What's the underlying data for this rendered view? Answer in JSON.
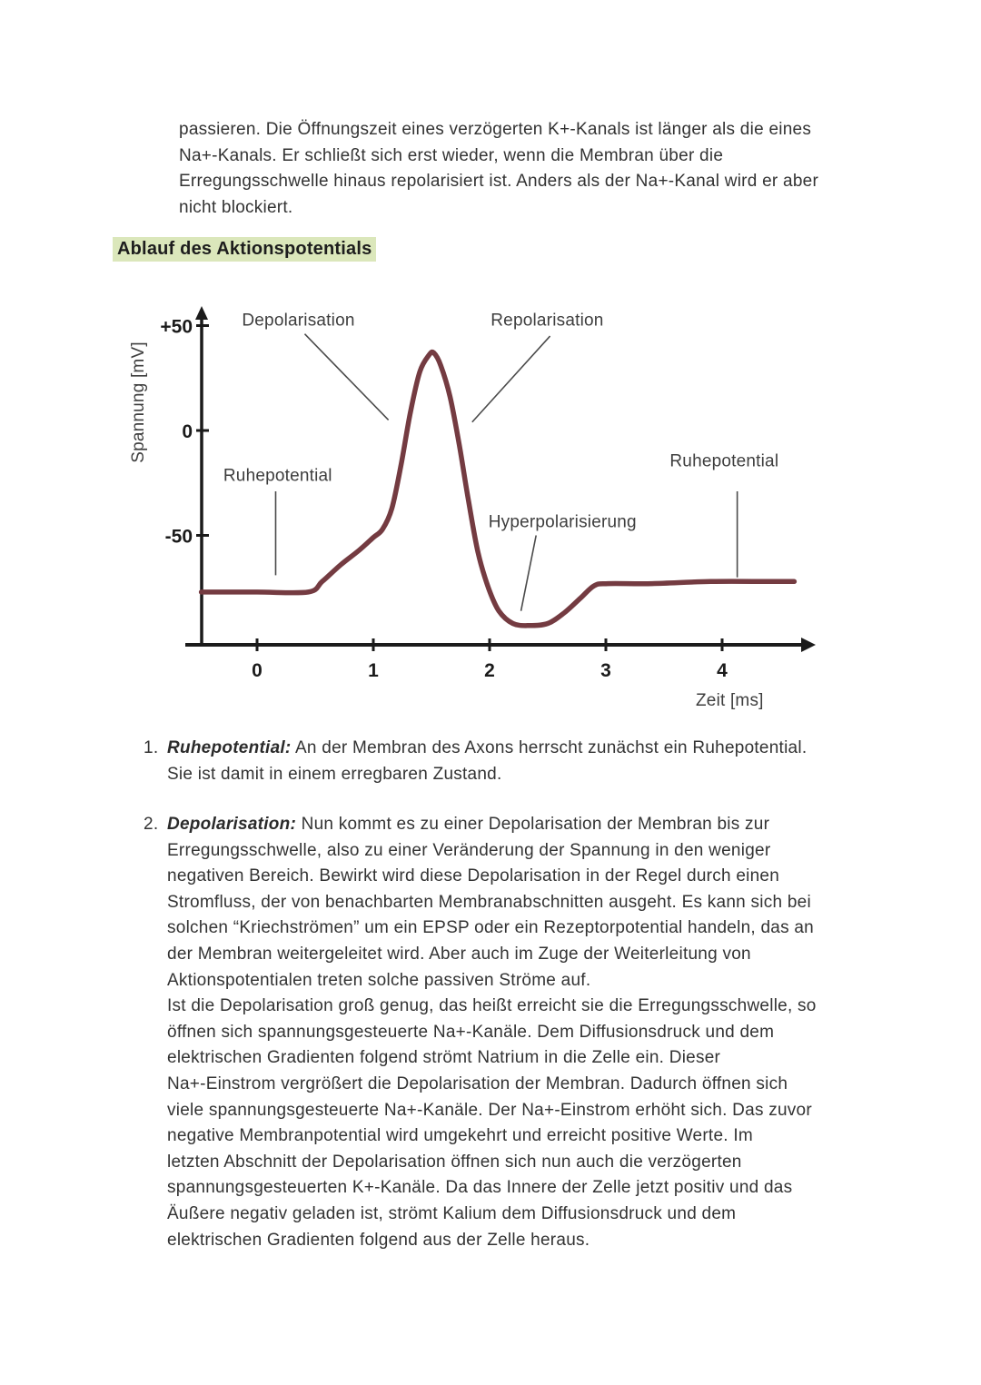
{
  "intro": {
    "lines": [
      "passieren. Die Öffnungszeit eines verzögerten K+-Kanals ist länger als die eines",
      "Na+-Kanals. Er schließt sich erst wieder, wenn die Membran über die",
      "Erregungsschwelle hinaus repolarisiert ist. Anders als der Na+-Kanal wird er aber",
      "nicht blockiert."
    ]
  },
  "heading": {
    "text": "Ablauf des Aktionspotentials",
    "highlight_color": "#dbe7bb"
  },
  "chart_data": {
    "type": "line",
    "title": "",
    "xlabel": "Zeit [ms]",
    "ylabel": "Spannung [mV]",
    "xlim": [
      -0.5,
      4.7
    ],
    "ylim": [
      -105,
      60
    ],
    "x_ticks": [
      0,
      1,
      2,
      3,
      4
    ],
    "y_ticks": [
      {
        "value": 50,
        "label": "+50"
      },
      {
        "value": 0,
        "label": "0"
      },
      {
        "value": -50,
        "label": "-50"
      }
    ],
    "grid": false,
    "legend": false,
    "line_color": "#743b41",
    "axis_color": "#1b1b1b",
    "annotation_color": "#4a4a4a",
    "points": [
      [
        -0.48,
        -77
      ],
      [
        0,
        -77
      ],
      [
        0.44,
        -77
      ],
      [
        0.56,
        -72
      ],
      [
        0.72,
        -64
      ],
      [
        0.88,
        -57
      ],
      [
        1,
        -51
      ],
      [
        1.08,
        -47
      ],
      [
        1.16,
        -37
      ],
      [
        1.24,
        -16
      ],
      [
        1.32,
        9
      ],
      [
        1.4,
        28
      ],
      [
        1.48,
        36
      ],
      [
        1.52,
        37
      ],
      [
        1.58,
        31
      ],
      [
        1.66,
        16
      ],
      [
        1.74,
        -7
      ],
      [
        1.82,
        -34
      ],
      [
        1.9,
        -58
      ],
      [
        1.99,
        -75
      ],
      [
        2.08,
        -86
      ],
      [
        2.2,
        -92
      ],
      [
        2.34,
        -93
      ],
      [
        2.5,
        -92
      ],
      [
        2.64,
        -87
      ],
      [
        2.78,
        -80
      ],
      [
        2.9,
        -74
      ],
      [
        3.02,
        -73
      ],
      [
        3.4,
        -73
      ],
      [
        3.9,
        -72
      ],
      [
        4.4,
        -72
      ],
      [
        4.62,
        -72
      ]
    ],
    "annotations": [
      {
        "text": "Depolarisation",
        "label_t": -0.13,
        "label_v": 50,
        "line": [
          [
            0.41,
            46
          ],
          [
            1.13,
            5
          ]
        ]
      },
      {
        "text": "Repolarisation",
        "label_t": 2.01,
        "label_v": 50,
        "line": [
          [
            2.52,
            45
          ],
          [
            1.85,
            4
          ]
        ]
      },
      {
        "text": "Ruhepotential",
        "label_t": -0.29,
        "label_v": -24,
        "line": [
          [
            0.16,
            -29
          ],
          [
            0.16,
            -69
          ]
        ]
      },
      {
        "text": "Hyperpolarisierung",
        "label_t": 1.99,
        "label_v": -46,
        "line": [
          [
            2.4,
            -50
          ],
          [
            2.27,
            -86
          ]
        ]
      },
      {
        "text": "Ruhepotential",
        "label_t": 3.55,
        "label_v": -17,
        "line": [
          [
            4.13,
            -29
          ],
          [
            4.13,
            -70
          ]
        ]
      }
    ]
  },
  "list": {
    "items": [
      {
        "number": "1.",
        "term": "Ruhepotential:",
        "lines": [
          "An der Membran des Axons herrscht zunächst ein Ruhepotential.",
          "Sie ist damit in einem erregbaren Zustand."
        ]
      },
      {
        "number": "2.",
        "term": "Depolarisation:",
        "lines": [
          "Nun kommt es zu einer Depolarisation der Membran bis zur",
          "Erregungsschwelle, also zu einer Veränderung der Spannung in den weniger",
          "negativen Bereich. Bewirkt wird diese Depolarisation in der Regel durch einen",
          "Stromfluss, der von benachbarten Membranabschnitten ausgeht. Es kann sich bei",
          "solchen “Kriechströmen” um ein EPSP oder ein Rezeptorpotential handeln, das an",
          "der Membran weitergeleitet wird. Aber auch im Zuge der Weiterleitung von",
          "Aktionspotentialen treten solche passiven Ströme auf.",
          "Ist die Depolarisation groß genug, das heißt erreicht sie die Erregungsschwelle, so",
          "öffnen sich spannungsgesteuerte Na+-Kanäle. Dem Diffusionsdruck und dem",
          "elektrischen Gradienten folgend strömt Natrium in die Zelle ein. Dieser",
          "Na+-Einstrom vergrößert die Depolarisation der Membran. Dadurch öffnen sich",
          "viele spannungsgesteuerte Na+-Kanäle. Der Na+-Einstrom erhöht sich. Das zuvor",
          "negative Membranpotential wird umgekehrt und erreicht positive Werte. Im",
          "letzten Abschnitt der Depolarisation öffnen sich nun auch die verzögerten",
          "spannungsgesteuerten K+-Kanäle. Da das Innere der Zelle jetzt positiv und das",
          "Äußere negativ geladen ist, strömt Kalium dem Diffusionsdruck und dem",
          "elektrischen Gradienten folgend aus der Zelle heraus."
        ]
      }
    ]
  }
}
